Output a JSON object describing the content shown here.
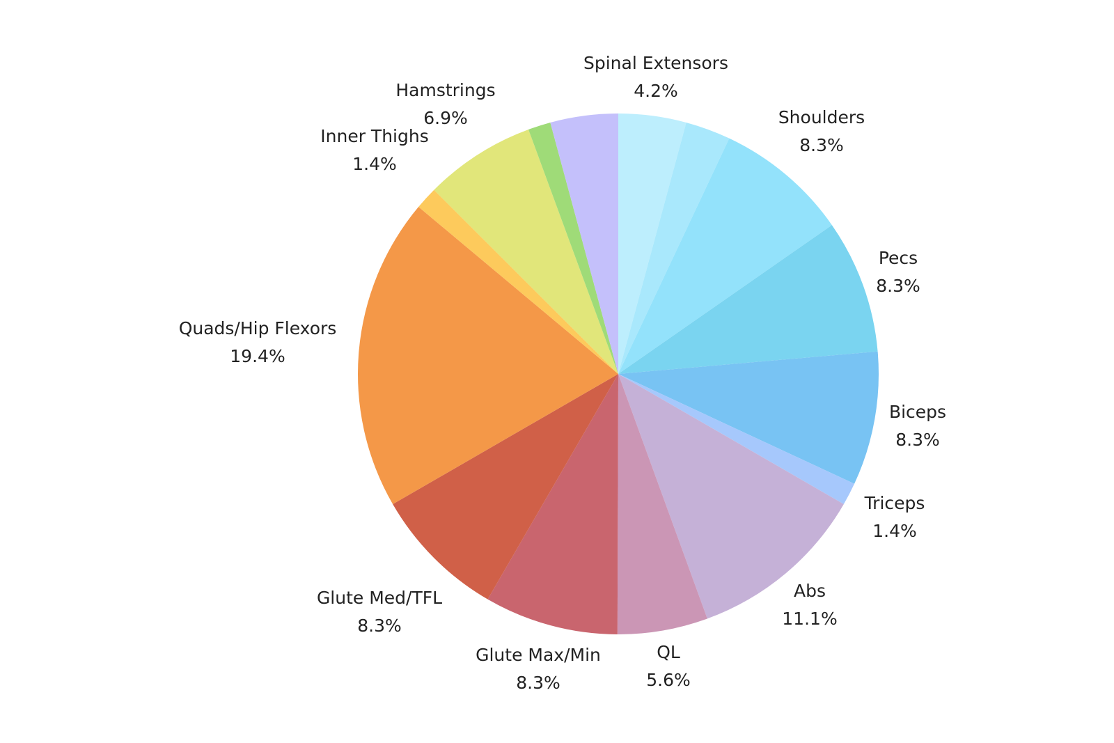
{
  "chart_data": {
    "type": "pie",
    "title": "",
    "start_angle_deg": 0,
    "direction": "clockwise",
    "slices": [
      {
        "label": "",
        "value": 4.2,
        "color": "#BDEEFD",
        "value_label": ""
      },
      {
        "label": "",
        "value": 2.8,
        "color": "#A9E8FC",
        "value_label": ""
      },
      {
        "label": "Shoulders",
        "value": 8.3,
        "color": "#93E2FB",
        "value_label": "8.3%"
      },
      {
        "label": "Pecs",
        "value": 8.3,
        "color": "#7AD4F0",
        "value_label": "8.3%"
      },
      {
        "label": "Biceps",
        "value": 8.3,
        "color": "#78C3F3",
        "value_label": "8.3%"
      },
      {
        "label": "Triceps",
        "value": 1.4,
        "color": "#A6C8FC",
        "value_label": "1.4%"
      },
      {
        "label": "Abs",
        "value": 11.1,
        "color": "#C5B1D7",
        "value_label": "11.1%"
      },
      {
        "label": "QL",
        "value": 5.6,
        "color": "#CB96B5",
        "value_label": "5.6%"
      },
      {
        "label": "Glute Max/Min",
        "value": 8.3,
        "color": "#C9656E",
        "value_label": "8.3%"
      },
      {
        "label": "Glute Med/TFL",
        "value": 8.3,
        "color": "#D06048",
        "value_label": "8.3%"
      },
      {
        "label": "Quads/Hip Flexors",
        "value": 19.4,
        "color": "#F49848",
        "value_label": "19.4%"
      },
      {
        "label": "",
        "value": 1.4,
        "color": "#FDCA5C",
        "value_label": ""
      },
      {
        "label": "Hamstrings",
        "value": 6.9,
        "color": "#E1E67A",
        "value_label": "6.9%"
      },
      {
        "label": "Inner Thighs",
        "value": 1.4,
        "color": "#9FDB78",
        "value_label": "1.4%"
      },
      {
        "label": "Spinal Extensors",
        "value": 4.2,
        "color": "#C4C0FB",
        "value_label": "4.2%"
      }
    ]
  }
}
